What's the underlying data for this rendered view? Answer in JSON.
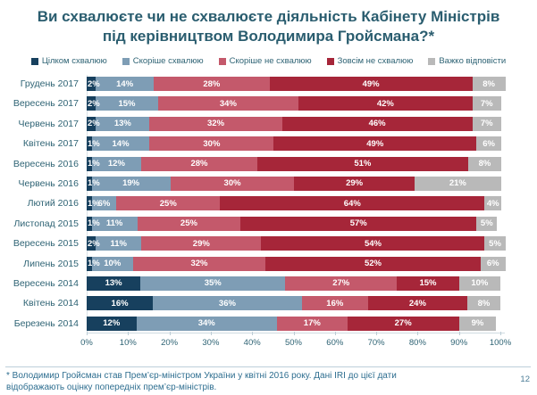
{
  "title": "Ви схвалюєте чи не схвалюєте діяльність Кабінету Міністрів під керівництвом Володимира Гройсмана?*",
  "chart_data": {
    "type": "bar",
    "orientation": "horizontal-stacked",
    "title": "Ви схвалюєте чи не схвалюєте діяльність Кабінету Міністрів під керівництвом Володимира Гройсмана?*",
    "legend_position": "top",
    "xlim": [
      0,
      100
    ],
    "x_ticks": [
      "0%",
      "10%",
      "20%",
      "30%",
      "40%",
      "50%",
      "60%",
      "70%",
      "80%",
      "90%",
      "100%"
    ],
    "value_suffix": "%",
    "categories": [
      "Грудень 2017",
      "Вересень 2017",
      "Червень 2017",
      "Квітень 2017",
      "Вересень 2016",
      "Червень 2016",
      "Лютий 2016",
      "Листопад 2015",
      "Вересень 2015",
      "Липень 2015",
      "Вересень 2014",
      "Квітень 2014",
      "Березень 2014"
    ],
    "series": [
      {
        "name": "Цілком схвалюю",
        "color": "#17405E",
        "values": [
          2,
          2,
          2,
          1,
          1,
          1,
          1,
          1,
          2,
          1,
          13,
          16,
          12
        ]
      },
      {
        "name": "Скоріше схвалюю",
        "color": "#7E9DB5",
        "values": [
          14,
          15,
          13,
          14,
          12,
          19,
          6,
          11,
          11,
          10,
          35,
          36,
          34
        ]
      },
      {
        "name": "Скоріше не схвалюю",
        "color": "#C4596B",
        "values": [
          28,
          34,
          32,
          30,
          28,
          30,
          25,
          25,
          29,
          32,
          27,
          16,
          17
        ]
      },
      {
        "name": "Зовсім не схвалюю",
        "color": "#A62639",
        "values": [
          49,
          42,
          46,
          49,
          51,
          29,
          64,
          57,
          54,
          52,
          15,
          24,
          27
        ]
      },
      {
        "name": "Важко відповісти",
        "color": "#B9B9B9",
        "values": [
          8,
          7,
          7,
          6,
          8,
          21,
          4,
          5,
          5,
          6,
          10,
          8,
          9
        ]
      }
    ]
  },
  "footnote": {
    "lines": [
      "* Володимир Гройсман став Прем’єр-міністром України у квітні 2016 року. Дані IRI до цієї дати",
      "відображають оцінку попередніх прем’єр-міністрів."
    ]
  },
  "page_number": "12"
}
